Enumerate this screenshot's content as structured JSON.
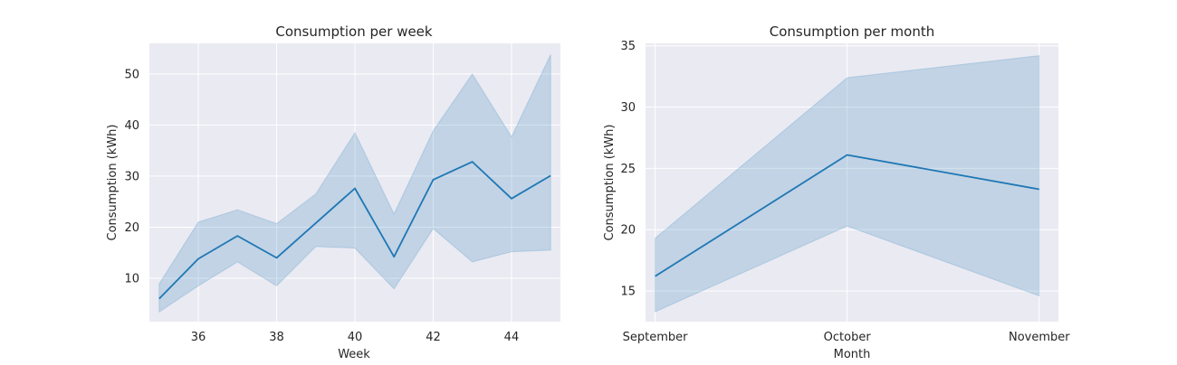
{
  "colors": {
    "line": "#1f77b4",
    "band": "#1f77b4",
    "plot_bg": "#eaeaf2",
    "grid": "#ffffff",
    "text": "#262626"
  },
  "chart_data": [
    {
      "type": "line",
      "title": "Consumption per week",
      "xlabel": "Week",
      "ylabel": "Consumption (kWh)",
      "xlim": [
        34.75,
        45.25
      ],
      "ylim": [
        1.5,
        56.0
      ],
      "xticks": [
        36,
        38,
        40,
        42,
        44
      ],
      "yticks": [
        10,
        20,
        30,
        40,
        50
      ],
      "grid": true,
      "series": [
        {
          "x": [
            35,
            36,
            37,
            38,
            39,
            40,
            41,
            42,
            43,
            44,
            45
          ],
          "values": [
            6.0,
            13.8,
            18.3,
            14.0,
            20.8,
            27.6,
            14.2,
            29.3,
            32.8,
            25.6,
            30.1
          ],
          "ci_lower": [
            3.4,
            8.5,
            13.2,
            8.5,
            16.2,
            15.9,
            7.9,
            19.7,
            13.2,
            15.2,
            15.5
          ],
          "ci_upper": [
            8.9,
            21.0,
            23.4,
            20.7,
            26.5,
            38.5,
            22.6,
            38.9,
            50.0,
            37.7,
            53.8
          ]
        }
      ]
    },
    {
      "type": "line",
      "title": "Consumption per month",
      "xlabel": "Month",
      "ylabel": "Consumption (kWh)",
      "categories": [
        "September",
        "October",
        "November"
      ],
      "ylim": [
        12.5,
        35.2
      ],
      "yticks": [
        15,
        20,
        25,
        30,
        35
      ],
      "grid": true,
      "series": [
        {
          "values": [
            16.2,
            26.1,
            23.3
          ],
          "ci_lower": [
            13.3,
            20.3,
            14.6
          ],
          "ci_upper": [
            19.3,
            32.4,
            34.2
          ]
        }
      ]
    }
  ]
}
